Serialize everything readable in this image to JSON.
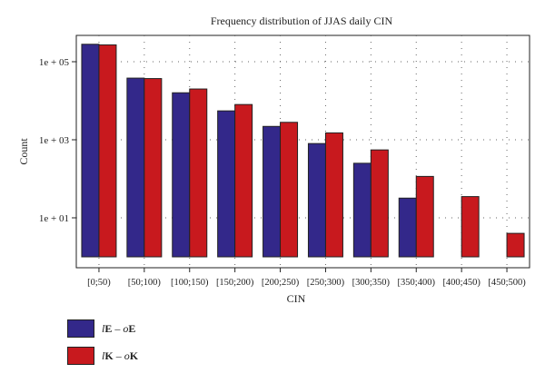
{
  "chart_data": {
    "type": "bar",
    "title": "Frequency distribution of JJAS daily CIN",
    "xlabel": "CIN",
    "ylabel": "Count",
    "y_scale": "log",
    "ylim": [
      1,
      500000
    ],
    "yticks": [
      {
        "value": 10,
        "label": "1e + 01"
      },
      {
        "value": 1000,
        "label": "1e + 03"
      },
      {
        "value": 100000,
        "label": "1e + 05"
      }
    ],
    "grid": true,
    "categories": [
      "[0;50)",
      "[50;100)",
      "[100;150)",
      "[150;200)",
      "[200;250)",
      "[250;300)",
      "[300;350)",
      "[350;400)",
      "[400;450)",
      "[450;500)"
    ],
    "series": [
      {
        "name_italic": "l",
        "name_bold": "E",
        "name_sep": " – ",
        "name_italic2": "o",
        "name_bold2": "E",
        "color": "#33288a",
        "values": [
          280000,
          38000,
          16000,
          5500,
          2200,
          800,
          250,
          32,
          null,
          null
        ]
      },
      {
        "name_italic": "l",
        "name_bold": "K",
        "name_sep": " – ",
        "name_italic2": "o",
        "name_bold2": "K",
        "color": "#c8191e",
        "values": [
          270000,
          37000,
          20000,
          8000,
          2800,
          1500,
          550,
          115,
          35,
          4
        ]
      }
    ],
    "legend_position": "bottom-left"
  }
}
